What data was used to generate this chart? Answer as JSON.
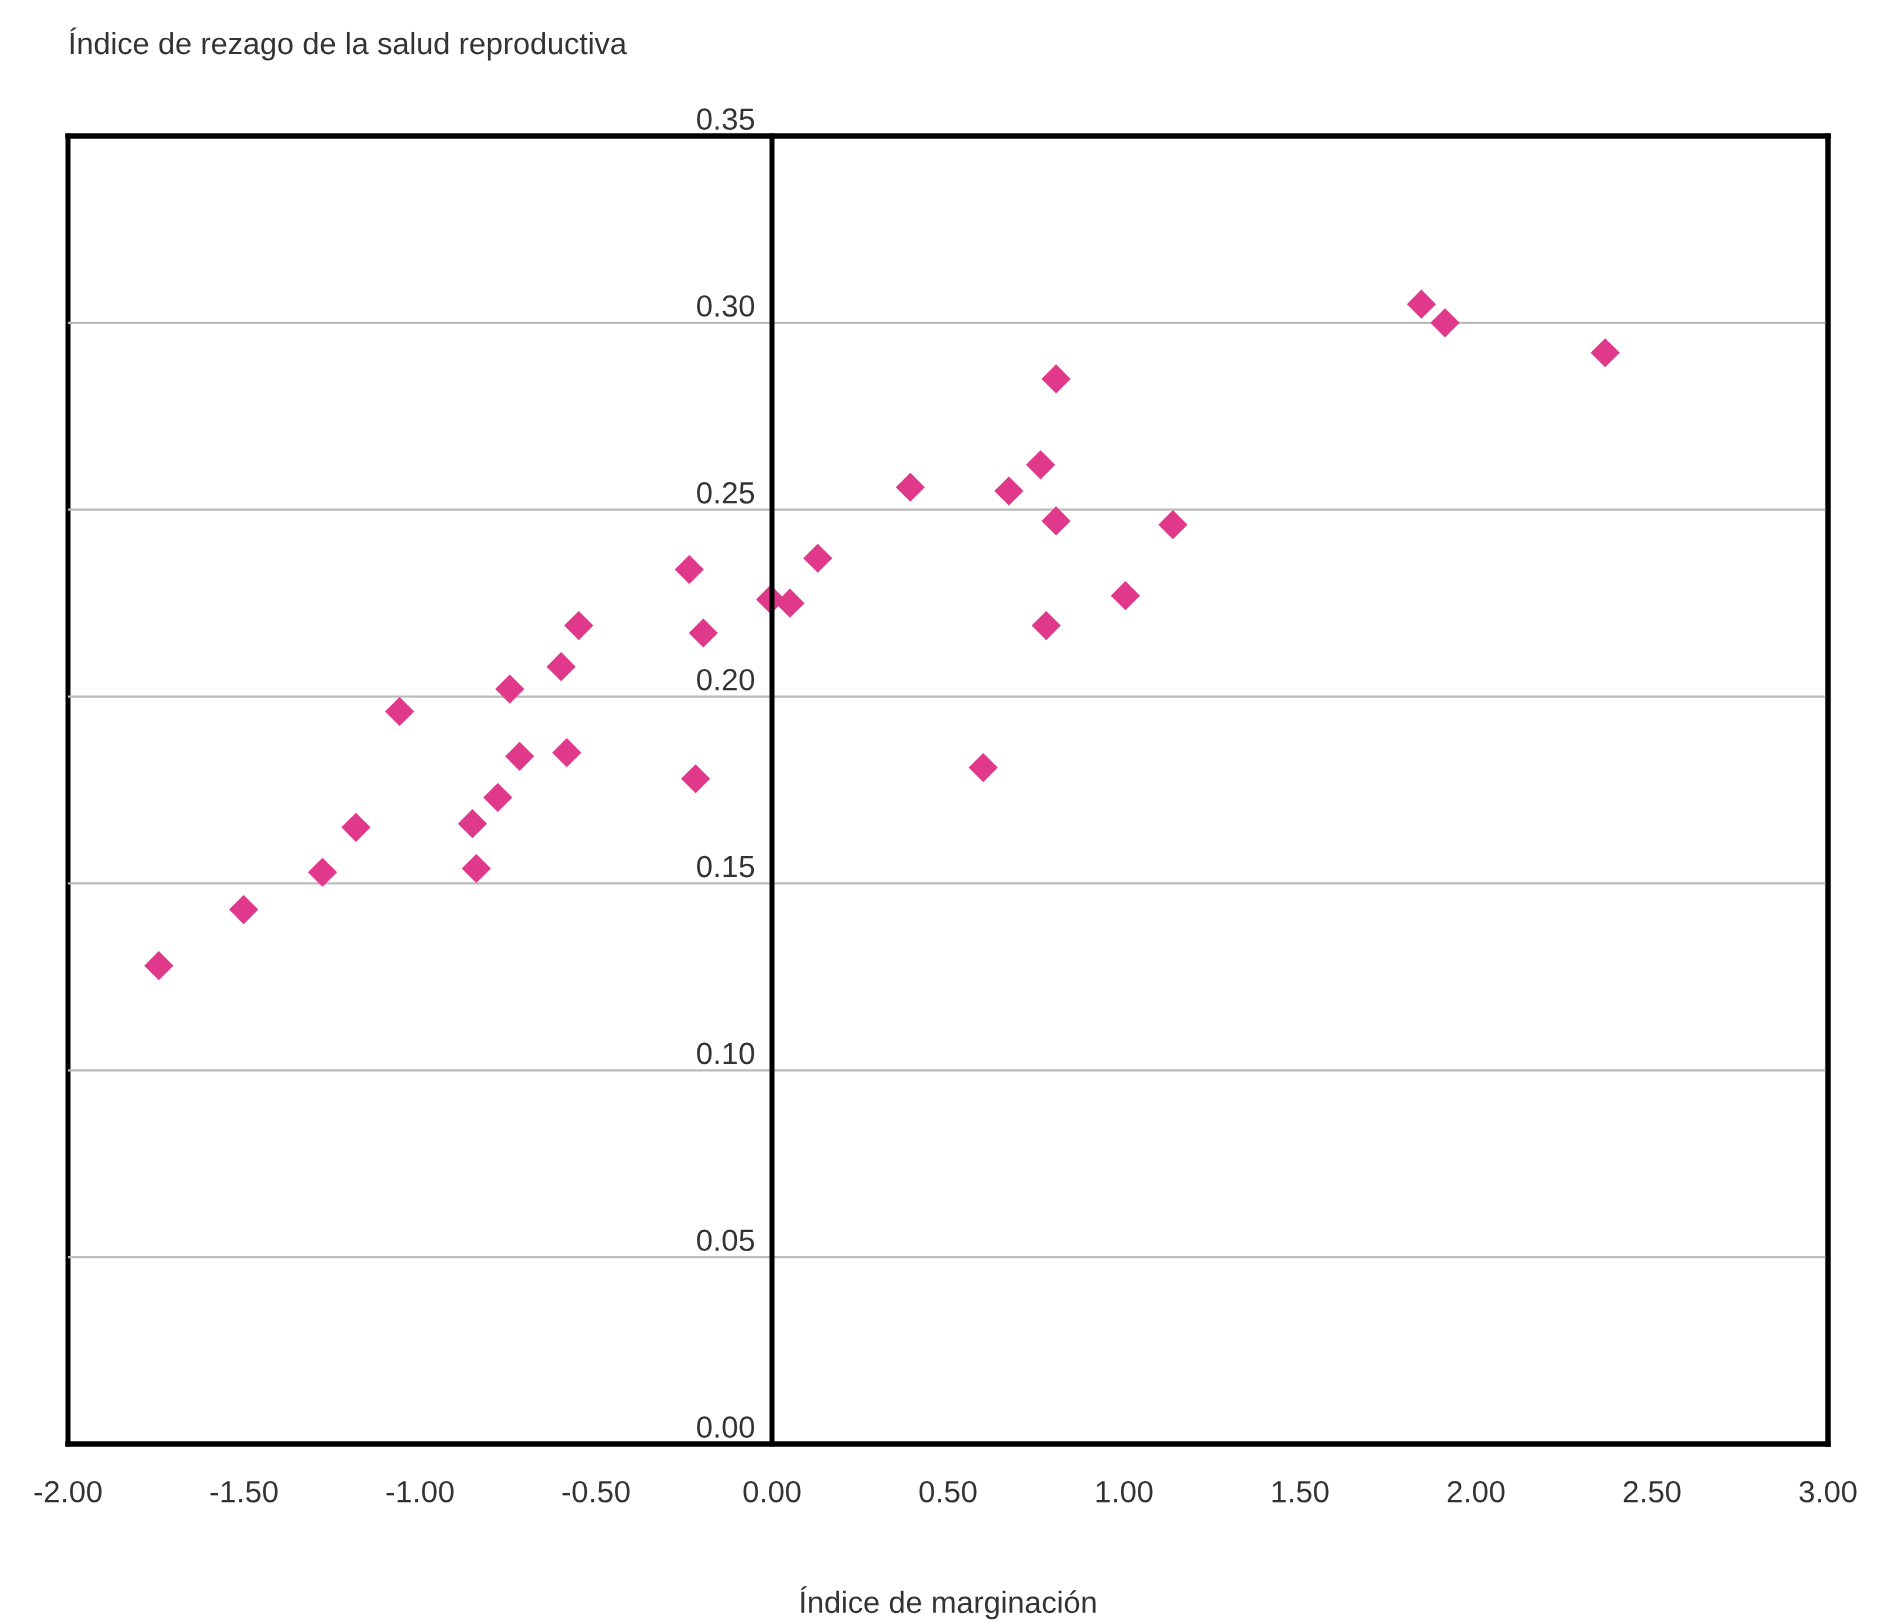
{
  "chart_data": {
    "type": "scatter",
    "xlabel": "Índice de marginación",
    "ylabel": "Índice de rezago de la salud reproductiva",
    "x": [
      -1.742,
      -1.501,
      -1.277,
      -1.182,
      -1.058,
      -0.851,
      -0.84,
      -0.779,
      -0.745,
      -0.717,
      -0.599,
      -0.583,
      -0.549,
      -0.235,
      -0.195,
      -0.217,
      -0.004,
      0.051,
      0.13,
      0.393,
      0.673,
      0.763,
      0.807,
      0.807,
      0.779,
      0.6,
      1.004,
      1.139,
      1.845,
      1.912,
      2.367
    ],
    "series": [
      {
        "color": "#e0388a",
        "values": [
          0.128,
          0.143,
          0.153,
          0.165,
          0.196,
          0.166,
          0.154,
          0.173,
          0.202,
          0.184,
          0.208,
          0.185,
          0.219,
          0.234,
          0.217,
          0.178,
          0.226,
          0.225,
          0.237,
          0.256,
          0.255,
          0.262,
          0.285,
          0.247,
          0.219,
          0.181,
          0.227,
          0.246,
          0.305,
          0.3,
          0.292
        ]
      }
    ],
    "xlim": [
      -2,
      3
    ],
    "xticks": [
      {
        "value": -2,
        "label": "-2.00"
      },
      {
        "value": -1.5,
        "label": "-1.50"
      },
      {
        "value": -1,
        "label": "-1.00"
      },
      {
        "value": -0.5,
        "label": "-0.50"
      },
      {
        "value": 0,
        "label": "0.00"
      },
      {
        "value": 0.5,
        "label": "0.50"
      },
      {
        "value": 1,
        "label": "1.00"
      },
      {
        "value": 1.5,
        "label": "1.50"
      },
      {
        "value": 2,
        "label": "2.00"
      },
      {
        "value": 2.5,
        "label": "2.50"
      },
      {
        "value": 3,
        "label": "3.00"
      }
    ],
    "ylim": [
      0,
      0.35
    ],
    "yticks": [
      {
        "value": 0,
        "label": "0.00"
      },
      {
        "value": 0.05,
        "label": "0.05"
      },
      {
        "value": 0.1,
        "label": "0.10"
      },
      {
        "value": 0.15,
        "label": "0.15"
      },
      {
        "value": 0.2,
        "label": "0.20"
      },
      {
        "value": 0.25,
        "label": "0.25"
      },
      {
        "value": 0.3,
        "label": "0.30"
      },
      {
        "value": 0.35,
        "label": "0.35"
      }
    ],
    "grid": "y",
    "marker": "diamond",
    "legend": false
  }
}
